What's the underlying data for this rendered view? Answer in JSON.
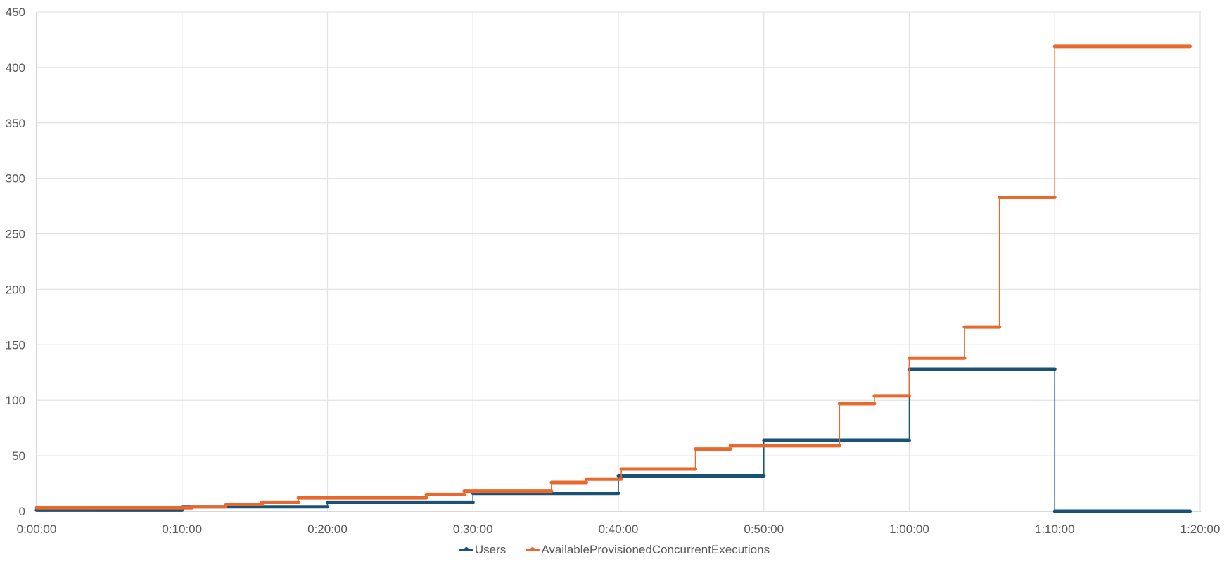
{
  "chart_data": {
    "type": "line",
    "step": true,
    "title": "",
    "xlabel": "",
    "ylabel": "",
    "ylim": [
      0,
      450
    ],
    "yticks": [
      0,
      50,
      100,
      150,
      200,
      250,
      300,
      350,
      400,
      450
    ],
    "xlim_minutes": [
      0,
      82
    ],
    "xticks": [
      "0:00:00",
      "0:10:00",
      "0:20:00",
      "0:30:00",
      "0:40:00",
      "0:50:00",
      "1:00:00",
      "1:10:00",
      "1:20:00"
    ],
    "grid": true,
    "legend_position": "bottom",
    "series": [
      {
        "name": "Users",
        "color": "#1a5276",
        "steps": [
          {
            "start_min": 0,
            "end_min": 10,
            "value": 1
          },
          {
            "start_min": 10,
            "end_min": 20,
            "value": 4
          },
          {
            "start_min": 20,
            "end_min": 30,
            "value": 8
          },
          {
            "start_min": 30,
            "end_min": 40,
            "value": 16
          },
          {
            "start_min": 40,
            "end_min": 50,
            "value": 32
          },
          {
            "start_min": 50,
            "end_min": 60,
            "value": 64
          },
          {
            "start_min": 60,
            "end_min": 70,
            "value": 128
          },
          {
            "start_min": 70,
            "end_min": 79.3,
            "value": 0
          }
        ]
      },
      {
        "name": "AvailableProvisionedConcurrentExecutions",
        "color": "#e8692e",
        "steps": [
          {
            "start_min": 0,
            "end_min": 10.7,
            "value": 3
          },
          {
            "start_min": 10.7,
            "end_min": 13,
            "value": 4
          },
          {
            "start_min": 13,
            "end_min": 15.5,
            "value": 6
          },
          {
            "start_min": 15.5,
            "end_min": 18,
            "value": 8
          },
          {
            "start_min": 18,
            "end_min": 26.8,
            "value": 12
          },
          {
            "start_min": 26.8,
            "end_min": 29.4,
            "value": 15
          },
          {
            "start_min": 29.4,
            "end_min": 35.4,
            "value": 18
          },
          {
            "start_min": 35.4,
            "end_min": 37.8,
            "value": 26
          },
          {
            "start_min": 37.8,
            "end_min": 40.2,
            "value": 29
          },
          {
            "start_min": 40.2,
            "end_min": 45.3,
            "value": 38
          },
          {
            "start_min": 45.3,
            "end_min": 47.7,
            "value": 56
          },
          {
            "start_min": 47.7,
            "end_min": 55.2,
            "value": 59
          },
          {
            "start_min": 55.2,
            "end_min": 57.6,
            "value": 97
          },
          {
            "start_min": 57.6,
            "end_min": 60,
            "value": 104
          },
          {
            "start_min": 60,
            "end_min": 63.8,
            "value": 138
          },
          {
            "start_min": 63.8,
            "end_min": 66.2,
            "value": 166
          },
          {
            "start_min": 66.2,
            "end_min": 70,
            "value": 283
          },
          {
            "start_min": 70,
            "end_min": 79.3,
            "value": 419
          }
        ]
      }
    ]
  },
  "legend": {
    "items": [
      {
        "label": "Users",
        "color": "#1a5276"
      },
      {
        "label": "AvailableProvisionedConcurrentExecutions",
        "color": "#e8692e"
      }
    ]
  }
}
